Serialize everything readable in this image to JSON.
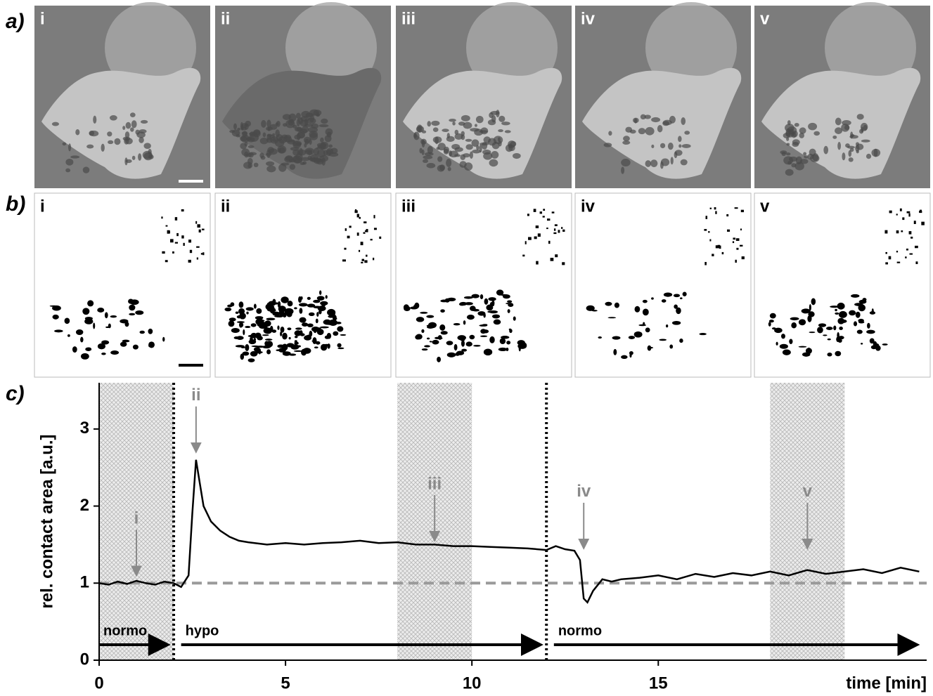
{
  "panels": {
    "a": {
      "label": "a)",
      "images": [
        "i",
        "ii",
        "iii",
        "iv",
        "v"
      ]
    },
    "b": {
      "label": "b)",
      "images": [
        "i",
        "ii",
        "iii",
        "iv",
        "v"
      ]
    }
  },
  "chart_data": {
    "type": "line",
    "panel_label": "c)",
    "y_label": "rel. contact area [a.u.]",
    "x_label": "time [min]",
    "xlim": [
      0,
      22.2
    ],
    "ylim": [
      0,
      3.6
    ],
    "xticks": [
      0,
      5,
      10,
      15
    ],
    "yticks": [
      0,
      1,
      2,
      3
    ],
    "color": "#000000",
    "baseline": 1,
    "baseline_color": "#9a9a9a",
    "switch_times": [
      2,
      12
    ],
    "shaded": [
      [
        0,
        2
      ],
      [
        8,
        10
      ],
      [
        18,
        20
      ]
    ],
    "annotations": [
      {
        "label": "i",
        "x": 1,
        "y": 1.1
      },
      {
        "label": "ii",
        "x": 2.6,
        "y": 2.7
      },
      {
        "label": "iii",
        "x": 9,
        "y": 1.55
      },
      {
        "label": "iv",
        "x": 13,
        "y": 1.45
      },
      {
        "label": "v",
        "x": 19,
        "y": 1.45
      }
    ],
    "phases": [
      {
        "label": "normo",
        "start": 0,
        "end": 1.9
      },
      {
        "label": "hypo",
        "start": 2.2,
        "end": 11.9
      },
      {
        "label": "normo",
        "start": 12.2,
        "end": 22
      }
    ],
    "x": [
      0,
      0.25,
      0.5,
      0.75,
      1,
      1.25,
      1.5,
      1.75,
      2,
      2.2,
      2.4,
      2.5,
      2.6,
      2.7,
      2.8,
      3,
      3.25,
      3.5,
      3.75,
      4,
      4.5,
      5,
      5.5,
      6,
      6.5,
      7,
      7.5,
      8,
      8.5,
      9,
      9.5,
      10,
      10.5,
      11,
      11.5,
      12,
      12.25,
      12.5,
      12.75,
      12.9,
      13,
      13.1,
      13.25,
      13.5,
      13.75,
      14,
      14.5,
      15,
      15.5,
      16,
      16.5,
      17,
      17.5,
      18,
      18.5,
      19,
      19.5,
      20,
      20.5,
      21,
      21.5,
      22
    ],
    "values": [
      1.0,
      0.98,
      1.02,
      0.99,
      1.03,
      1.0,
      0.98,
      1.02,
      1.0,
      0.95,
      1.1,
      1.9,
      2.6,
      2.3,
      2.0,
      1.8,
      1.68,
      1.6,
      1.55,
      1.53,
      1.5,
      1.52,
      1.5,
      1.52,
      1.53,
      1.55,
      1.52,
      1.53,
      1.5,
      1.5,
      1.48,
      1.48,
      1.47,
      1.46,
      1.45,
      1.43,
      1.48,
      1.44,
      1.42,
      1.3,
      0.8,
      0.75,
      0.9,
      1.05,
      1.02,
      1.05,
      1.07,
      1.1,
      1.05,
      1.12,
      1.08,
      1.13,
      1.1,
      1.15,
      1.1,
      1.17,
      1.12,
      1.15,
      1.18,
      1.13,
      1.2,
      1.15
    ]
  }
}
